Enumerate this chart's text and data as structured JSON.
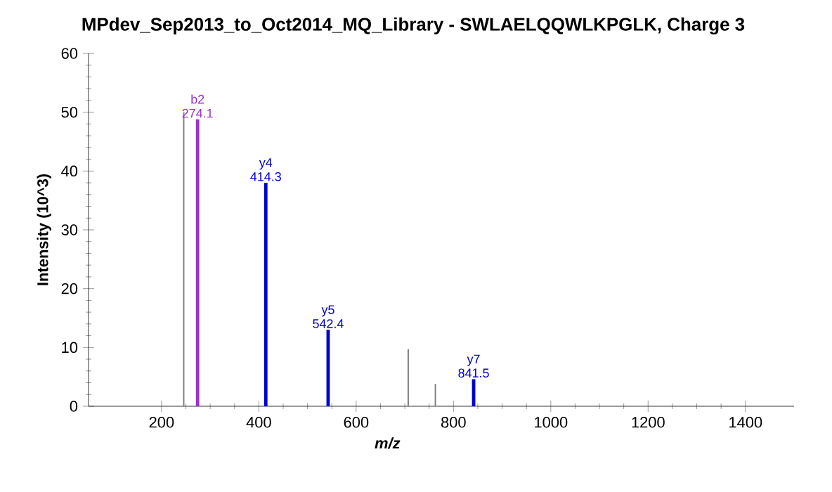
{
  "chart_data": {
    "type": "bar",
    "title": "MPdev_Sep2013_to_Oct2014_MQ_Library - SWLAELQQWLKPGLK, Charge 3",
    "xlabel": "m/z",
    "ylabel": "Intensity (10^3)",
    "series": [
      {
        "color": "#808080",
        "x": [
          245.6,
          707,
          762.8
        ],
        "values": [
          50,
          9.7,
          3.8
        ]
      },
      {
        "color": "#9933cc",
        "x": [
          274.1
        ],
        "values": [
          48.8
        ],
        "value_labels": [
          "b2 274.1"
        ]
      },
      {
        "color": "#0000cc",
        "x": [
          414.3,
          542.4,
          841.5
        ],
        "values": [
          38,
          13,
          4.6
        ],
        "value_labels": [
          "y4 414.3",
          "y5 542.4",
          "y7 841.5"
        ]
      }
    ],
    "xlim": [
      50,
      1500
    ],
    "xticks": [
      200,
      400,
      600,
      800,
      1000,
      1200,
      1400
    ],
    "ylim": [
      0,
      60
    ],
    "yticks": [
      0,
      10,
      20,
      30,
      40,
      50,
      60
    ],
    "grid": false
  }
}
